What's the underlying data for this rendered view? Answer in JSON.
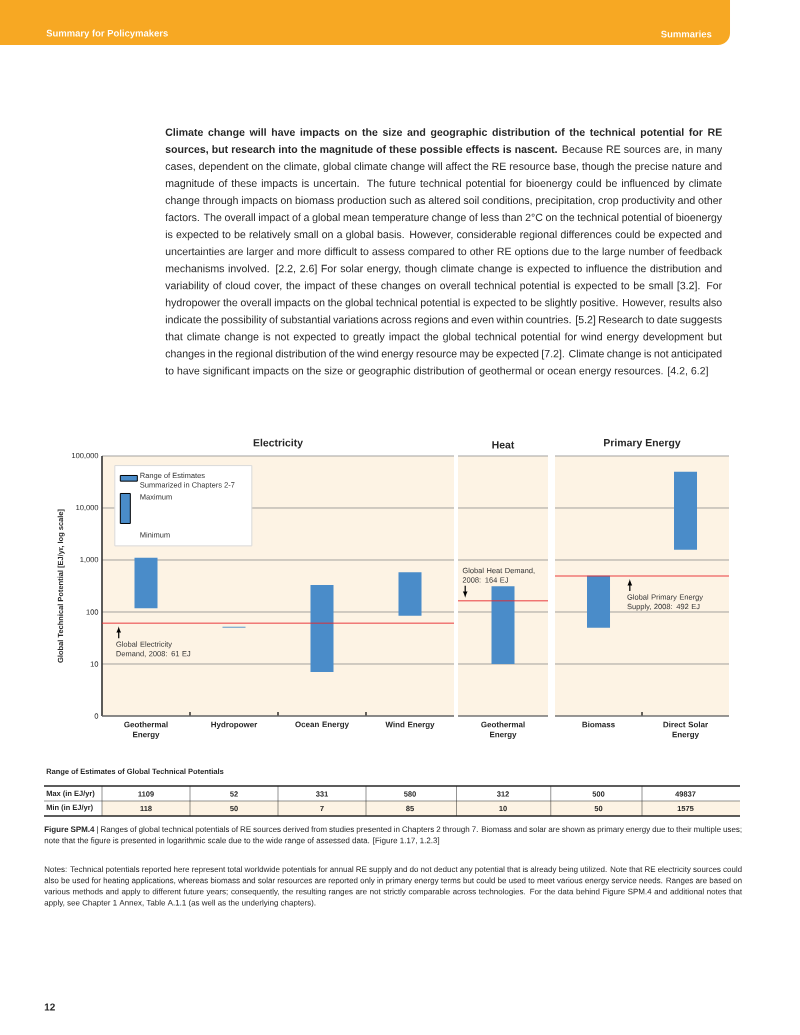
{
  "chart_data": [
    {
      "type": "bar",
      "title": "Electricity",
      "ylabel": "Global Technical Potential [EJ/yr, log scale]",
      "categories": [
        "Geothermal Energy",
        "Hydropower",
        "Ocean Energy",
        "Wind Energy"
      ],
      "series": [
        {
          "name": "Range of Estimates Summarized in Chapters 2-7",
          "color": "#4a8cc9",
          "base": [
            118,
            50,
            7,
            85
          ],
          "values": [
            991,
            2,
            324,
            495
          ]
        }
      ],
      "ylim": [
        0,
        100000
      ],
      "yticks": [
        0,
        10,
        100,
        {
          "value": 1000,
          "label": "1,000"
        },
        {
          "value": 10000,
          "label": "10,000"
        },
        {
          "value": 100000,
          "label": "100,000"
        }
      ],
      "log": true,
      "grid": true,
      "legend": "top left",
      "ref_lines": [
        {
          "axis": "y",
          "value": 61,
          "label": "Global Electricity Demand, 2008: 61 EJ",
          "color": "#e8262a"
        }
      ],
      "annotations": [
        "Summary for Policymakers",
        "Summaries",
        "**Climate change will have impacts on the size and geographic distribution of the technical potential for RE sources, but research into the magnitude of these possible effects is nascent.** Because RE sources are, in many cases, dependent on the climate, global climate change will affect the RE resource base, though the precise nature and magnitude of these impacts is uncertain. The future technical potential for bioenergy could be influenced by climate change through impacts on biomass production such as altered soil conditions, precipitation, crop productivity and other factors. The overall impact of a global mean temperature change of less than 2°C on the technical potential of bioenergy is expected to be relatively small on a global basis. However, considerable regional differences could be expected and uncertainties are larger and more difficult to assess compared to other RE options due to the large number of feedback mechanisms involved. [2.2, 2.6] For solar energy, though climate change is expected to influence the distribution and variability of cloud cover, the impact of these changes on overall technical potential is expected to be small [3.2]. For hydropower the overall impacts on the global technical potential is expected to be slightly positive. However, results also indicate the possibility of substantial variations across regions and even within countries. [5.2] Research to date suggests that climate change is not expected to greatly impact the global technical potential for wind energy development but changes in the regional distribution of the wind energy resource may be expected [7.2]. Climate change is not anticipated to have significant impacts on the size or geographic distribution of geothermal or ocean energy resources. [4.2, 6.2]",
        "Maximum",
        "Minimum",
        "Range of Estimates of Global Technical Potentials",
        "Max (in EJ/yr)",
        "Min (in EJ/yr)",
        "**Figure SPM.4** | Ranges of global technical potentials of RE sources derived from studies presented in Chapters 2 through 7. Biomass and solar are shown as primary energy due to their multiple uses; note that the figure is presented in logarithmic scale due to the wide range of assessed data. [Figure 1.17, 1.2.3]",
        "Notes: Technical potentials reported here represent total worldwide potentials for annual RE supply and do not deduct any potential that is already being utilized. Note that RE electricity sources could also be used for heating applications, whereas biomass and solar resources are reported only in primary energy terms but could be used to meet various energy service needs. Ranges are based on various methods and apply to different future years; consequently, the resulting ranges are not strictly comparable across technologies. For the data behind Figure SPM.4 and additional notes that apply, see Chapter 1 Annex, Table A.1.1 (as well as the underlying chapters).",
        "12",
        "1109",
        "52",
        "331",
        "580",
        "118",
        "50",
        "7",
        "85"
      ]
    },
    {
      "type": "bar",
      "title": "Heat",
      "categories": [
        "Geothermal Energy"
      ],
      "base": [
        10
      ],
      "values": [
        302
      ],
      "color": "#4a8cc9",
      "ylim": [
        0,
        100000
      ],
      "yticks": [
        10,
        100,
        1000,
        10000,
        100000
      ],
      "log": true,
      "grid": true,
      "tick_labels": "x",
      "ref_lines": [
        {
          "axis": "y",
          "value": 164,
          "label": "Global Heat Demand, 2008: 164 EJ",
          "color": "#e8262a"
        }
      ],
      "annotations": [
        "312",
        "10"
      ]
    },
    {
      "type": "bar",
      "title": "Primary Energy",
      "categories": [
        "Biomass",
        "Direct Solar Energy"
      ],
      "base": [
        50,
        1575
      ],
      "values": [
        450,
        48262
      ],
      "color": "#4a8cc9",
      "ylim": [
        0,
        100000
      ],
      "yticks": [
        10,
        100,
        1000,
        10000,
        100000
      ],
      "log": true,
      "grid": true,
      "tick_labels": "x",
      "ref_lines": [
        {
          "axis": "y",
          "value": 492,
          "label": "Global Primary Energy Supply, 2008: 492 EJ",
          "color": "#e8262a"
        }
      ],
      "annotations": [
        "500",
        "49837",
        "50",
        "1575"
      ]
    }
  ]
}
